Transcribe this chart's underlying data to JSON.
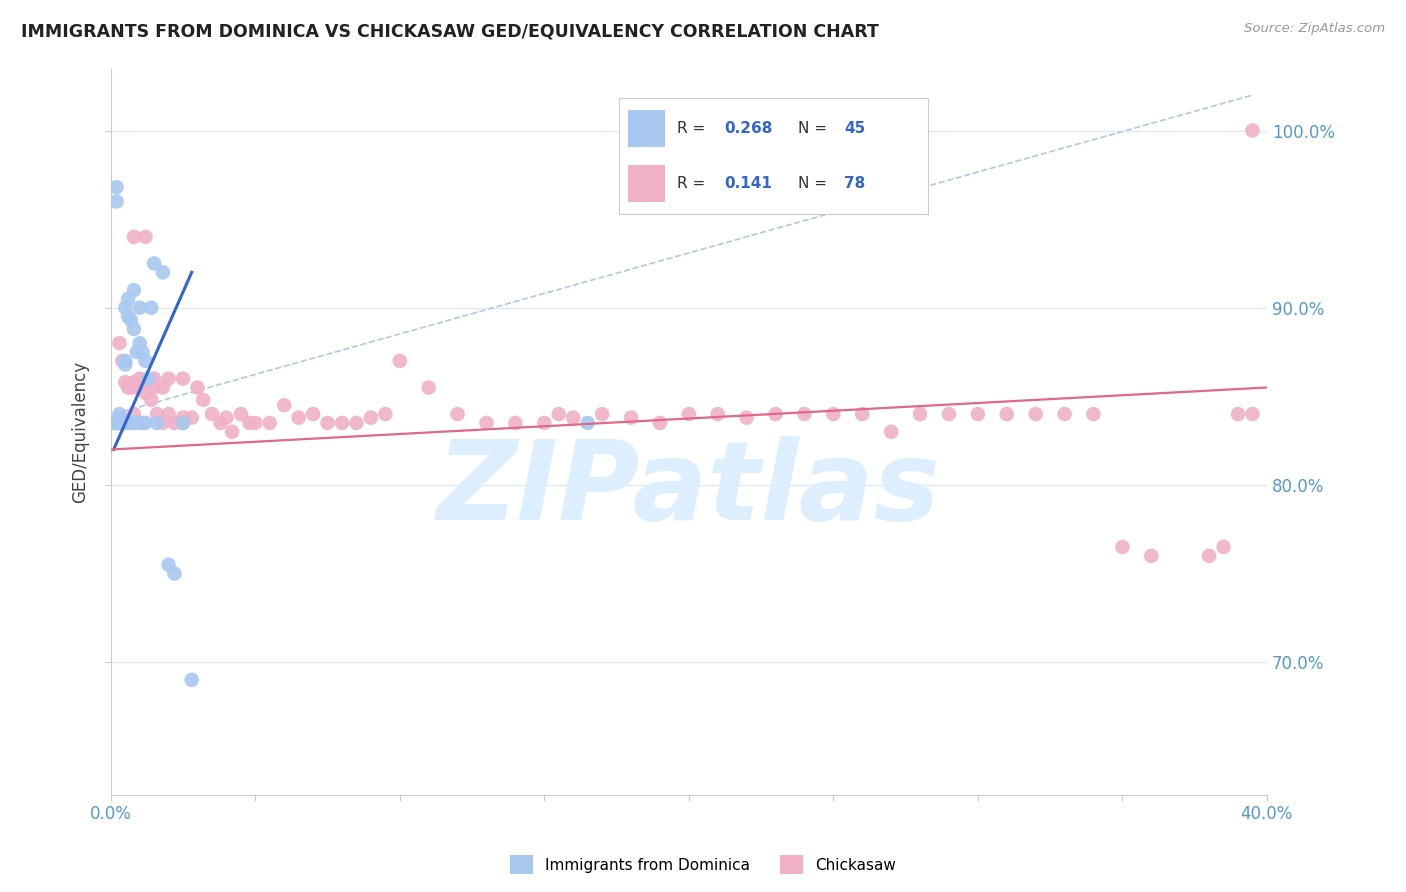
{
  "title": "IMMIGRANTS FROM DOMINICA VS CHICKASAW GED/EQUIVALENCY CORRELATION CHART",
  "source": "Source: ZipAtlas.com",
  "ylabel": "GED/Equivalency",
  "ytick_labels": [
    "70.0%",
    "80.0%",
    "90.0%",
    "100.0%"
  ],
  "ytick_values": [
    0.7,
    0.8,
    0.9,
    1.0
  ],
  "xlim": [
    0.0,
    0.4
  ],
  "ylim": [
    0.625,
    1.035
  ],
  "legend_blue_R": "0.268",
  "legend_blue_N": "45",
  "legend_pink_R": "0.141",
  "legend_pink_N": "78",
  "blue_scatter_x": [
    0.001,
    0.002,
    0.002,
    0.002,
    0.002,
    0.002,
    0.003,
    0.003,
    0.003,
    0.003,
    0.003,
    0.004,
    0.004,
    0.004,
    0.004,
    0.004,
    0.005,
    0.005,
    0.005,
    0.005,
    0.006,
    0.006,
    0.006,
    0.007,
    0.007,
    0.008,
    0.008,
    0.009,
    0.009,
    0.01,
    0.01,
    0.011,
    0.011,
    0.012,
    0.012,
    0.013,
    0.014,
    0.015,
    0.016,
    0.018,
    0.02,
    0.022,
    0.025,
    0.028,
    0.165
  ],
  "blue_scatter_y": [
    0.835,
    0.968,
    0.96,
    0.835,
    0.835,
    0.836,
    0.835,
    0.84,
    0.838,
    0.835,
    0.835,
    0.835,
    0.837,
    0.836,
    0.835,
    0.836,
    0.87,
    0.9,
    0.868,
    0.835,
    0.905,
    0.895,
    0.835,
    0.893,
    0.835,
    0.91,
    0.888,
    0.875,
    0.835,
    0.9,
    0.88,
    0.875,
    0.835,
    0.87,
    0.835,
    0.86,
    0.9,
    0.925,
    0.835,
    0.92,
    0.755,
    0.75,
    0.835,
    0.69,
    0.835
  ],
  "pink_scatter_x": [
    0.003,
    0.004,
    0.005,
    0.006,
    0.006,
    0.007,
    0.008,
    0.008,
    0.009,
    0.01,
    0.012,
    0.012,
    0.014,
    0.015,
    0.016,
    0.018,
    0.018,
    0.02,
    0.022,
    0.025,
    0.025,
    0.028,
    0.03,
    0.032,
    0.035,
    0.038,
    0.04,
    0.042,
    0.045,
    0.048,
    0.05,
    0.055,
    0.06,
    0.065,
    0.07,
    0.075,
    0.08,
    0.085,
    0.09,
    0.095,
    0.1,
    0.11,
    0.12,
    0.13,
    0.14,
    0.15,
    0.155,
    0.16,
    0.17,
    0.18,
    0.19,
    0.2,
    0.21,
    0.22,
    0.23,
    0.24,
    0.25,
    0.26,
    0.27,
    0.28,
    0.29,
    0.3,
    0.31,
    0.32,
    0.33,
    0.34,
    0.35,
    0.36,
    0.38,
    0.385,
    0.39,
    0.395,
    0.008,
    0.012,
    0.015,
    0.02,
    0.025,
    0.395
  ],
  "pink_scatter_y": [
    0.88,
    0.87,
    0.858,
    0.856,
    0.855,
    0.855,
    0.858,
    0.84,
    0.855,
    0.86,
    0.858,
    0.852,
    0.848,
    0.855,
    0.84,
    0.855,
    0.835,
    0.84,
    0.835,
    0.838,
    0.835,
    0.838,
    0.855,
    0.848,
    0.84,
    0.835,
    0.838,
    0.83,
    0.84,
    0.835,
    0.835,
    0.835,
    0.845,
    0.838,
    0.84,
    0.835,
    0.835,
    0.835,
    0.838,
    0.84,
    0.87,
    0.855,
    0.84,
    0.835,
    0.835,
    0.835,
    0.84,
    0.838,
    0.84,
    0.838,
    0.835,
    0.84,
    0.84,
    0.838,
    0.84,
    0.84,
    0.84,
    0.84,
    0.83,
    0.84,
    0.84,
    0.84,
    0.84,
    0.84,
    0.84,
    0.84,
    0.765,
    0.76,
    0.76,
    0.765,
    0.84,
    0.84,
    0.94,
    0.94,
    0.86,
    0.86,
    0.86,
    1.0
  ],
  "blue_color": "#a8c8f0",
  "pink_color": "#f0b0c8",
  "blue_line_color": "#3366cc",
  "pink_line_color": "#e06888",
  "dashed_line_color": "#b0c8e8",
  "watermark_text": "ZIPatlas",
  "watermark_color": "#ddeeff",
  "background_color": "#ffffff",
  "grid_color": "#dde8f0",
  "blue_line_x": [
    0.001,
    0.028
  ],
  "blue_line_y": [
    0.82,
    0.92
  ],
  "pink_line_x": [
    0.0,
    0.4
  ],
  "pink_line_y": [
    0.82,
    0.855
  ],
  "dash_line_x": [
    0.001,
    0.395
  ],
  "dash_line_y": [
    0.84,
    1.02
  ]
}
